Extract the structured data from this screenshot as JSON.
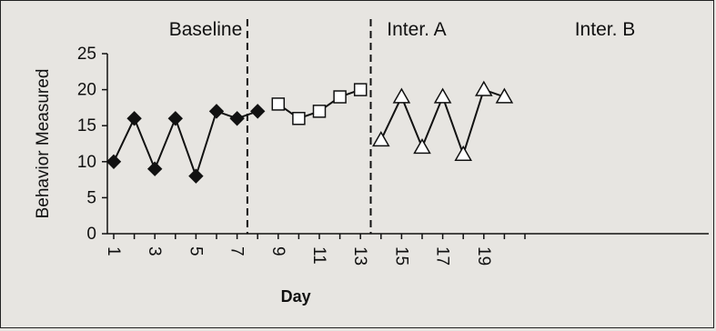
{
  "chart_data": {
    "type": "line",
    "ylabel": "Behavior Measured",
    "xlabel": "Day",
    "ylim": [
      0,
      25
    ],
    "yticks": [
      "0",
      "5",
      "10",
      "15",
      "20",
      "25"
    ],
    "xlim": [
      1,
      21
    ],
    "xticks": [
      "1",
      "3",
      "5",
      "7",
      "9",
      "11",
      "13",
      "15",
      "17",
      "19"
    ],
    "xtick_values": [
      1,
      3,
      5,
      7,
      9,
      11,
      13,
      15,
      17,
      19
    ],
    "phases": [
      {
        "label": "Baseline",
        "start": 1,
        "end": 7
      },
      {
        "label": "Inter. A",
        "start": 8,
        "end": 13
      },
      {
        "label": "Inter. B",
        "start": 14,
        "end": 20
      }
    ],
    "phase_lines": [
      7.5,
      13.5
    ],
    "series": [
      {
        "marker": "diamond",
        "x": [
          1,
          2,
          3,
          4,
          5,
          6,
          7,
          8
        ],
        "y": [
          10,
          16,
          9,
          16,
          8,
          17,
          16,
          17
        ]
      },
      {
        "marker": "square",
        "x": [
          9,
          10,
          11,
          12,
          13
        ],
        "y": [
          18,
          16,
          17,
          19,
          20
        ]
      },
      {
        "marker": "triangle",
        "x": [
          14,
          15,
          16,
          17,
          18,
          19,
          20
        ],
        "y": [
          13,
          19,
          12,
          19,
          11,
          20,
          19
        ]
      }
    ],
    "grid": false,
    "colors": {
      "line": "#111111",
      "marker_fill_solid": "#111111",
      "marker_fill_open": "#ffffff"
    }
  }
}
